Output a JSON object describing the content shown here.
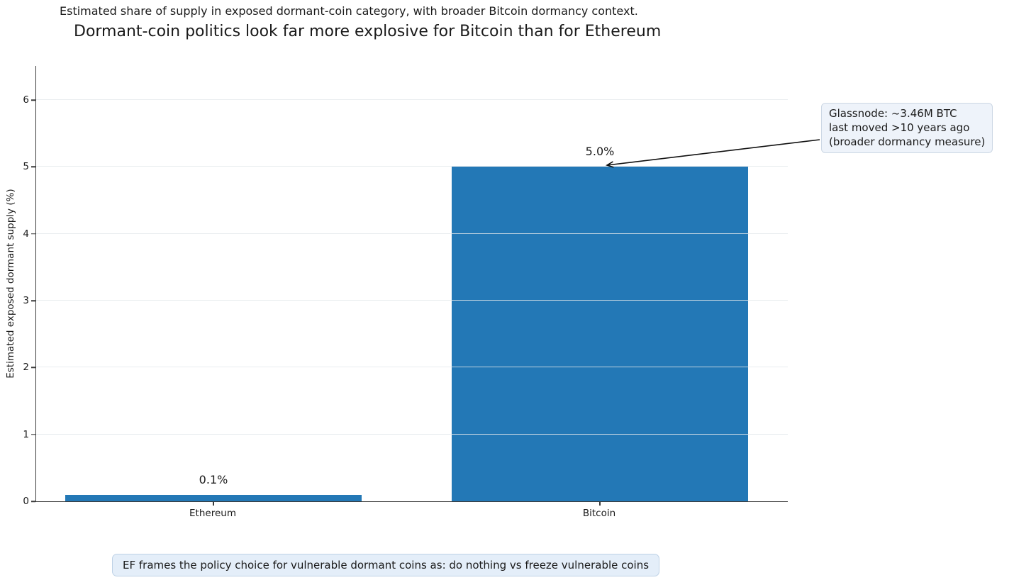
{
  "figure": {
    "suptitle": "Estimated share of supply in exposed dormant-coin category, with broader Bitcoin dormancy context.",
    "title": "Dormant-coin politics look far more explosive for Bitcoin than for Ethereum"
  },
  "chart_data": {
    "type": "bar",
    "categories": [
      "Ethereum",
      "Bitcoin"
    ],
    "values": [
      0.1,
      5.0
    ],
    "bar_labels": [
      "0.1%",
      "5.0%"
    ],
    "title": "Dormant-coin politics look far more explosive for Bitcoin than for Ethereum",
    "subtitle": "Estimated share of supply in exposed dormant-coin category, with broader Bitcoin dormancy context.",
    "xlabel": "",
    "ylabel": "Estimated exposed dormant supply (%)",
    "yticks": [
      0,
      1,
      2,
      3,
      4,
      5,
      6
    ],
    "ylim": [
      0,
      6.51
    ],
    "grid": "horizontal",
    "legend": "none",
    "annotation": {
      "lines": [
        "Glassnode: ~3.46M BTC",
        "last moved >10 years ago",
        "(broader dormancy measure)"
      ]
    },
    "caption": "EF frames the policy choice for vulnerable dormant coins as: do nothing vs freeze vulnerable coins"
  },
  "colors": {
    "bar": "#2378b6",
    "grid": "rgba(227,232,235,0.8)",
    "spine": "#3a3a3a",
    "text": "#1a1a1a",
    "annotation_bg": "#eef3fa",
    "annotation_border": "#ccd7e4",
    "caption_bg": "#e4eef9",
    "caption_border": "#bed2e6",
    "arrow": "#111111"
  }
}
